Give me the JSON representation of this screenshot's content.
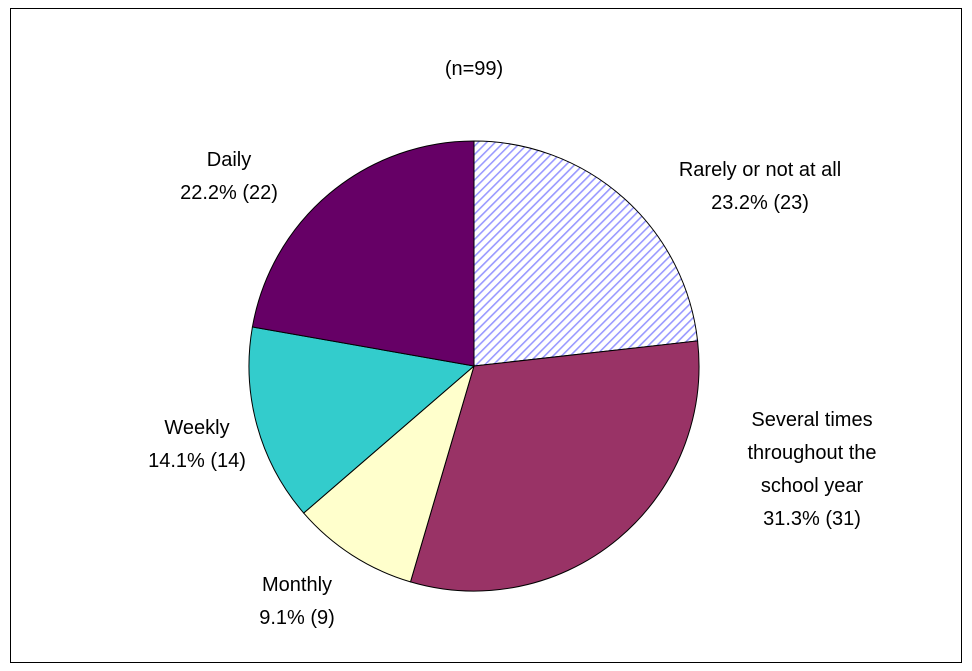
{
  "chart_data": {
    "type": "pie",
    "subtitle": "(n=99)",
    "categories": [
      "Rarely or not at all",
      "Several times throughout the school year",
      "Monthly",
      "Weekly",
      "Daily"
    ],
    "values": [
      23.2,
      31.3,
      9.1,
      14.1,
      22.2
    ],
    "value_labels": [
      "23.2% (23)",
      "31.3% (31)",
      "9.1% (9)",
      "14.1% (14)",
      "22.2% (22)"
    ],
    "colors": [
      "#9999ff",
      "#993366",
      "#ffffcc",
      "#33cccc",
      "#660066"
    ],
    "hatch": [
      true,
      false,
      false,
      false,
      false
    ]
  }
}
